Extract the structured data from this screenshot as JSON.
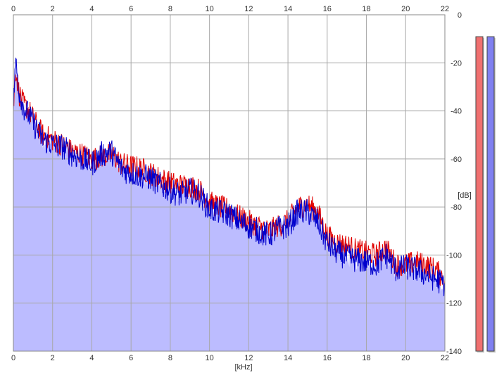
{
  "colors": {
    "left_channel": "#e00000",
    "right_channel": "#0000cc",
    "fill": "#bcbcff",
    "grid": "#a8a8a8",
    "meter_left": "#f07070",
    "meter_right": "#8080f0"
  },
  "chart_data": {
    "type": "line",
    "xlabel": "[kHz]",
    "ylabel": "[dB]",
    "xlim": [
      0,
      22
    ],
    "ylim": [
      -140,
      0
    ],
    "x_ticks": [
      "0",
      "2",
      "4",
      "6",
      "8",
      "10",
      "12",
      "14",
      "16",
      "18",
      "20",
      "22"
    ],
    "y_ticks": [
      "0",
      "-20",
      "-40",
      "-60",
      "-80",
      "-100",
      "-120",
      "-140"
    ],
    "grid": true,
    "area_fill": true,
    "series": [
      {
        "channel": "left",
        "color": "#e00000",
        "x": [
          0,
          0.1,
          0.3,
          0.5,
          0.8,
          1.0,
          1.5,
          2.0,
          2.5,
          3.0,
          3.5,
          4.0,
          4.5,
          5.0,
          5.5,
          6.0,
          6.5,
          7.0,
          7.5,
          8.0,
          8.5,
          9.0,
          9.5,
          10.0,
          10.5,
          11.0,
          11.5,
          12.0,
          12.5,
          13.0,
          13.5,
          14.0,
          14.5,
          15.0,
          15.5,
          16.0,
          16.5,
          17.0,
          17.5,
          18.0,
          18.5,
          19.0,
          19.5,
          20.0,
          20.5,
          21.0,
          21.5,
          22.0
        ],
        "values": [
          -40,
          -22,
          -33,
          -37,
          -40,
          -43,
          -50,
          -52,
          -54,
          -57,
          -58,
          -60,
          -59,
          -58,
          -62,
          -63,
          -64,
          -66,
          -68,
          -70,
          -71,
          -71,
          -73,
          -78,
          -80,
          -81,
          -84,
          -86,
          -88,
          -90,
          -88,
          -86,
          -80,
          -79,
          -82,
          -92,
          -95,
          -96,
          -98,
          -99,
          -100,
          -97,
          -104,
          -104,
          -103,
          -104,
          -106,
          -110
        ]
      },
      {
        "channel": "right",
        "color": "#0000cc",
        "x": [
          0,
          0.1,
          0.3,
          0.5,
          0.8,
          1.0,
          1.5,
          2.0,
          2.5,
          3.0,
          3.5,
          4.0,
          4.5,
          5.0,
          5.5,
          6.0,
          6.5,
          7.0,
          7.5,
          8.0,
          8.5,
          9.0,
          9.5,
          10.0,
          10.5,
          11.0,
          11.5,
          12.0,
          12.5,
          13.0,
          13.5,
          14.0,
          14.5,
          15.0,
          15.5,
          16.0,
          16.5,
          17.0,
          17.5,
          18.0,
          18.5,
          19.0,
          19.5,
          20.0,
          20.5,
          21.0,
          21.5,
          22.0
        ],
        "values": [
          -40,
          -19,
          -32,
          -38,
          -42,
          -45,
          -52,
          -54,
          -55,
          -58,
          -60,
          -62,
          -58,
          -57,
          -64,
          -66,
          -67,
          -68,
          -71,
          -73,
          -75,
          -73,
          -75,
          -81,
          -82,
          -83,
          -86,
          -88,
          -90,
          -92,
          -89,
          -88,
          -82,
          -82,
          -86,
          -95,
          -99,
          -101,
          -102,
          -103,
          -104,
          -100,
          -106,
          -105,
          -106,
          -108,
          -110,
          -112
        ]
      }
    ]
  },
  "meters": [
    {
      "channel": "left",
      "level": 0.98
    },
    {
      "channel": "right",
      "level": 0.98
    }
  ]
}
